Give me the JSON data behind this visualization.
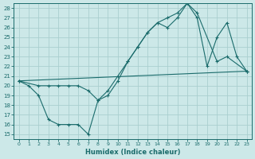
{
  "xlabel": "Humidex (Indice chaleur)",
  "bg_color": "#cce8e8",
  "line_color": "#1a6b6b",
  "grid_color": "#aacfcf",
  "xlim": [
    -0.5,
    23.5
  ],
  "ylim": [
    14.5,
    28.5
  ],
  "xticks": [
    0,
    1,
    2,
    3,
    4,
    5,
    6,
    7,
    8,
    9,
    10,
    11,
    12,
    13,
    14,
    15,
    16,
    17,
    18,
    19,
    20,
    21,
    22,
    23
  ],
  "yticks": [
    15,
    16,
    17,
    18,
    19,
    20,
    21,
    22,
    23,
    24,
    25,
    26,
    27,
    28
  ],
  "line1_x": [
    0,
    1,
    2,
    3,
    4,
    5,
    6,
    7,
    8,
    9,
    10,
    11,
    12,
    13,
    14,
    15,
    16,
    17,
    18,
    19,
    20,
    21,
    22,
    23
  ],
  "line1_y": [
    20.5,
    20.0,
    19.0,
    16.5,
    16.0,
    16.0,
    16.0,
    15.0,
    18.5,
    19.5,
    21.0,
    22.5,
    24.0,
    25.5,
    26.5,
    26.0,
    27.0,
    28.5,
    27.0,
    22.0,
    25.0,
    26.5,
    23.0,
    21.5
  ],
  "line2_x": [
    0,
    2,
    3,
    4,
    5,
    6,
    7,
    8,
    9,
    10,
    11,
    12,
    13,
    14,
    15,
    16,
    17,
    18,
    20,
    21,
    23
  ],
  "line2_y": [
    20.5,
    20.0,
    20.0,
    20.0,
    20.0,
    20.0,
    19.5,
    18.5,
    19.0,
    20.5,
    22.5,
    24.0,
    25.5,
    26.5,
    27.0,
    27.5,
    28.5,
    27.5,
    22.5,
    23.0,
    21.5
  ],
  "line3_x": [
    0,
    23
  ],
  "line3_y": [
    20.5,
    21.5
  ]
}
